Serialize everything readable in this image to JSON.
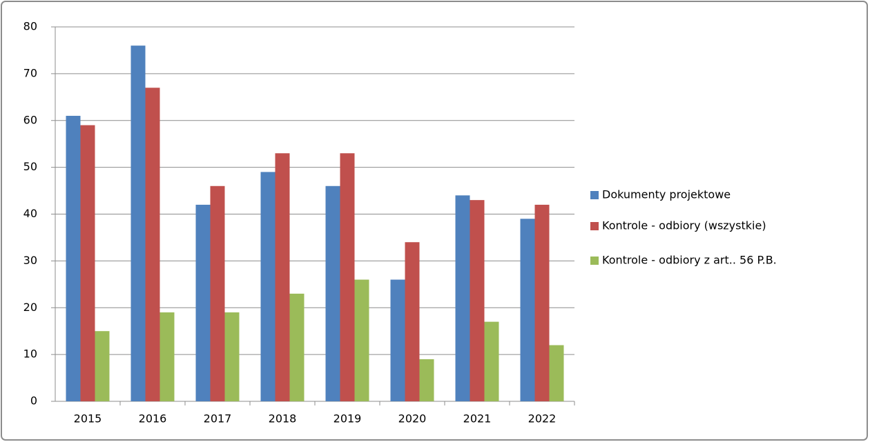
{
  "chart_data": {
    "type": "bar",
    "categories": [
      "2015",
      "2016",
      "2017",
      "2018",
      "2019",
      "2020",
      "2021",
      "2022"
    ],
    "series": [
      {
        "name": "Dokumenty projektowe",
        "color": "#4f81bd",
        "values": [
          61,
          76,
          42,
          49,
          46,
          26,
          44,
          39
        ]
      },
      {
        "name": "Kontrole - odbiory (wszystkie)",
        "color": "#c0504d",
        "values": [
          59,
          67,
          46,
          53,
          53,
          34,
          43,
          42
        ]
      },
      {
        "name": "Kontrole - odbiory z art.. 56 P.B.",
        "color": "#9bbb59",
        "values": [
          15,
          19,
          19,
          23,
          26,
          9,
          17,
          12
        ]
      }
    ],
    "ylim": [
      0,
      80
    ],
    "yticks": [
      0,
      10,
      20,
      30,
      40,
      50,
      60,
      70,
      80
    ],
    "grid": true,
    "legend": "right"
  }
}
